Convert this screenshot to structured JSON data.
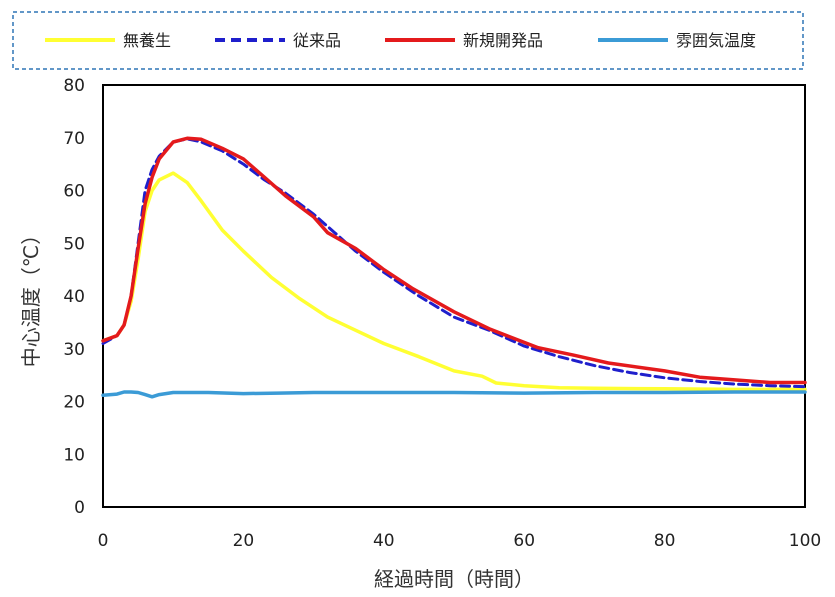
{
  "chart_data": {
    "type": "line",
    "title": "",
    "xlabel": "経過時間（時間）",
    "ylabel": "中心温度（℃）",
    "xlim": [
      0,
      100
    ],
    "ylim": [
      0,
      80
    ],
    "xticks": [
      0,
      20,
      40,
      60,
      80,
      100
    ],
    "yticks": [
      0,
      10,
      20,
      30,
      40,
      50,
      60,
      70,
      80
    ],
    "grid": false,
    "legend_position": "top",
    "series": [
      {
        "name": "無養生",
        "color": "#ffff33",
        "dash": "solid",
        "points": [
          [
            0,
            31.5
          ],
          [
            2,
            32.5
          ],
          [
            3,
            34.5
          ],
          [
            4,
            39
          ],
          [
            5,
            47
          ],
          [
            6,
            56
          ],
          [
            7,
            60
          ],
          [
            8,
            62
          ],
          [
            10,
            63.3
          ],
          [
            12,
            61.5
          ],
          [
            14,
            58
          ],
          [
            17,
            52.5
          ],
          [
            20,
            48.5
          ],
          [
            24,
            43.5
          ],
          [
            28,
            39.5
          ],
          [
            32,
            36
          ],
          [
            36,
            33.5
          ],
          [
            40,
            31
          ],
          [
            45,
            28.5
          ],
          [
            50,
            25.8
          ],
          [
            54,
            24.8
          ],
          [
            56,
            23.5
          ],
          [
            60,
            23
          ],
          [
            65,
            22.6
          ],
          [
            70,
            22.5
          ],
          [
            80,
            22.4
          ],
          [
            90,
            22.3
          ],
          [
            100,
            22.3
          ]
        ]
      },
      {
        "name": "従来品",
        "color": "#1f1fcc",
        "dash": "dashed",
        "points": [
          [
            0,
            31
          ],
          [
            2,
            32.5
          ],
          [
            3,
            34.5
          ],
          [
            4,
            40
          ],
          [
            5,
            50
          ],
          [
            6,
            60
          ],
          [
            7,
            64
          ],
          [
            8,
            66.5
          ],
          [
            10,
            69.2
          ],
          [
            12,
            69.8
          ],
          [
            14,
            69.2
          ],
          [
            17,
            67.5
          ],
          [
            20,
            65
          ],
          [
            23,
            62
          ],
          [
            26,
            59.5
          ],
          [
            30,
            55.5
          ],
          [
            33,
            52
          ],
          [
            36,
            48.5
          ],
          [
            40,
            44.5
          ],
          [
            45,
            40
          ],
          [
            50,
            36
          ],
          [
            55,
            33.5
          ],
          [
            60,
            30.5
          ],
          [
            65,
            28.5
          ],
          [
            70,
            26.8
          ],
          [
            75,
            25.5
          ],
          [
            80,
            24.5
          ],
          [
            85,
            23.8
          ],
          [
            90,
            23.3
          ],
          [
            95,
            23
          ],
          [
            100,
            22.8
          ]
        ]
      },
      {
        "name": "新規開発品",
        "color": "#e41a1c",
        "dash": "solid",
        "points": [
          [
            0,
            31.5
          ],
          [
            2,
            32.5
          ],
          [
            3,
            34.5
          ],
          [
            4,
            40
          ],
          [
            5,
            49
          ],
          [
            6,
            57.5
          ],
          [
            7,
            62.5
          ],
          [
            8,
            66
          ],
          [
            10,
            69.2
          ],
          [
            12,
            69.9
          ],
          [
            14,
            69.7
          ],
          [
            17,
            68
          ],
          [
            20,
            66
          ],
          [
            23,
            62.5
          ],
          [
            26,
            59
          ],
          [
            30,
            55
          ],
          [
            32,
            52
          ],
          [
            36,
            49
          ],
          [
            40,
            45
          ],
          [
            44,
            41.5
          ],
          [
            50,
            37
          ],
          [
            55,
            33.8
          ],
          [
            60,
            31.2
          ],
          [
            62,
            30.2
          ],
          [
            67,
            28.8
          ],
          [
            72,
            27.3
          ],
          [
            80,
            25.8
          ],
          [
            85,
            24.6
          ],
          [
            90,
            24.1
          ],
          [
            95,
            23.6
          ],
          [
            100,
            23.6
          ]
        ]
      },
      {
        "name": "雰囲気温度",
        "color": "#3b9bd6",
        "dash": "solid",
        "points": [
          [
            0,
            21.2
          ],
          [
            2,
            21.4
          ],
          [
            3,
            21.8
          ],
          [
            4,
            21.8
          ],
          [
            5,
            21.7
          ],
          [
            6,
            21.3
          ],
          [
            7,
            20.9
          ],
          [
            8,
            21.3
          ],
          [
            10,
            21.7
          ],
          [
            15,
            21.7
          ],
          [
            20,
            21.5
          ],
          [
            25,
            21.6
          ],
          [
            30,
            21.7
          ],
          [
            40,
            21.7
          ],
          [
            50,
            21.7
          ],
          [
            60,
            21.6
          ],
          [
            70,
            21.7
          ],
          [
            80,
            21.7
          ],
          [
            90,
            21.8
          ],
          [
            100,
            21.8
          ]
        ]
      }
    ]
  }
}
